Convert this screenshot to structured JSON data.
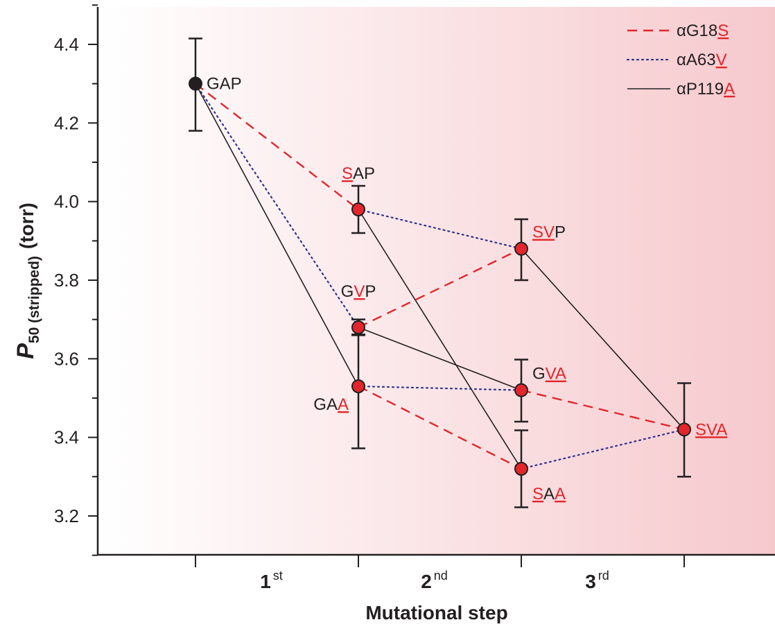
{
  "chart_data": {
    "type": "line",
    "ylabel": {
      "italic": "P",
      "sub": "50 (stripped)",
      "rest": "(torr)"
    },
    "xlabel": "Mutational step",
    "ylim": [
      3.1,
      4.5
    ],
    "yticks": [
      "3.2",
      "3.4",
      "3.6",
      "3.8",
      "4.0",
      "4.2",
      "4.4"
    ],
    "ytick_values": [
      3.2,
      3.4,
      3.6,
      3.8,
      4.0,
      4.2,
      4.4
    ],
    "steps": [
      {
        "num": "1",
        "suffix": "st"
      },
      {
        "num": "2",
        "suffix": "nd"
      },
      {
        "num": "3",
        "suffix": "rd"
      }
    ],
    "colors": {
      "red": "#e2262b",
      "blue": "#2e3192",
      "black": "#231f20",
      "background_start": "#ffffff",
      "background_end": "#f6c9cd"
    },
    "legend": [
      {
        "style": "dashed",
        "color": "#e2262b",
        "parts": [
          {
            "t": "αG18",
            "mut": false
          },
          {
            "t": "S",
            "mut": true
          }
        ]
      },
      {
        "style": "dotted",
        "color": "#2e3192",
        "parts": [
          {
            "t": "αA63",
            "mut": false
          },
          {
            "t": "V",
            "mut": true
          }
        ]
      },
      {
        "style": "solid",
        "color": "#231f20",
        "parts": [
          {
            "t": "αP119",
            "mut": false
          },
          {
            "t": "A",
            "mut": true
          }
        ]
      }
    ],
    "nodes": [
      {
        "id": "GAP",
        "step": 0,
        "value": 4.3,
        "err": [
          4.18,
          4.415
        ],
        "fill": "#231f20",
        "label": [
          {
            "t": "GAP",
            "mut": false
          }
        ],
        "label_pos": "right"
      },
      {
        "id": "SAP",
        "step": 1,
        "value": 3.98,
        "err": [
          3.92,
          4.04
        ],
        "fill": "#e2262b",
        "label": [
          {
            "t": "S",
            "mut": true
          },
          {
            "t": "AP",
            "mut": false
          }
        ],
        "label_pos": "above"
      },
      {
        "id": "GVP",
        "step": 1,
        "value": 3.68,
        "err": [
          3.66,
          3.7
        ],
        "fill": "#e2262b",
        "label": [
          {
            "t": "G",
            "mut": false
          },
          {
            "t": "V",
            "mut": true
          },
          {
            "t": "P",
            "mut": false
          }
        ],
        "label_pos": "above"
      },
      {
        "id": "GAA",
        "step": 1,
        "value": 3.53,
        "err": [
          3.372,
          3.662
        ],
        "fill": "#e2262b",
        "label": [
          {
            "t": "GA",
            "mut": false
          },
          {
            "t": "A",
            "mut": true
          }
        ],
        "label_pos": "below-left"
      },
      {
        "id": "SVP",
        "step": 2,
        "value": 3.88,
        "err": [
          3.8,
          3.955
        ],
        "fill": "#e2262b",
        "label": [
          {
            "t": "SV",
            "mut": true
          },
          {
            "t": "P",
            "mut": false
          }
        ],
        "label_pos": "above-right"
      },
      {
        "id": "GVA",
        "step": 2,
        "value": 3.52,
        "err": [
          3.44,
          3.598
        ],
        "fill": "#e2262b",
        "label": [
          {
            "t": "G",
            "mut": false
          },
          {
            "t": "VA",
            "mut": true
          }
        ],
        "label_pos": "above-right"
      },
      {
        "id": "SAA",
        "step": 2,
        "value": 3.32,
        "err": [
          3.222,
          3.418
        ],
        "fill": "#e2262b",
        "label": [
          {
            "t": "S",
            "mut": true
          },
          {
            "t": "A",
            "mut": false
          },
          {
            "t": "A",
            "mut": true
          }
        ],
        "label_pos": "below-right"
      },
      {
        "id": "SVA",
        "step": 3,
        "value": 3.42,
        "err": [
          3.3,
          3.538
        ],
        "fill": "#e2262b",
        "label": [
          {
            "t": "SVA",
            "mut": true
          }
        ],
        "label_pos": "right"
      }
    ],
    "edges": [
      {
        "from": "GAP",
        "to": "SAP",
        "style": "dashed"
      },
      {
        "from": "GAP",
        "to": "GVP",
        "style": "dotted"
      },
      {
        "from": "GAP",
        "to": "GAA",
        "style": "solid"
      },
      {
        "from": "SAP",
        "to": "SVP",
        "style": "dotted"
      },
      {
        "from": "SAP",
        "to": "SAA",
        "style": "solid"
      },
      {
        "from": "GVP",
        "to": "SVP",
        "style": "dashed"
      },
      {
        "from": "GVP",
        "to": "GVA",
        "style": "solid"
      },
      {
        "from": "GAA",
        "to": "GVA",
        "style": "dotted"
      },
      {
        "from": "GAA",
        "to": "SAA",
        "style": "dashed"
      },
      {
        "from": "SVP",
        "to": "SVA",
        "style": "solid"
      },
      {
        "from": "GVA",
        "to": "SVA",
        "style": "dashed"
      },
      {
        "from": "SAA",
        "to": "SVA",
        "style": "dotted"
      }
    ]
  }
}
